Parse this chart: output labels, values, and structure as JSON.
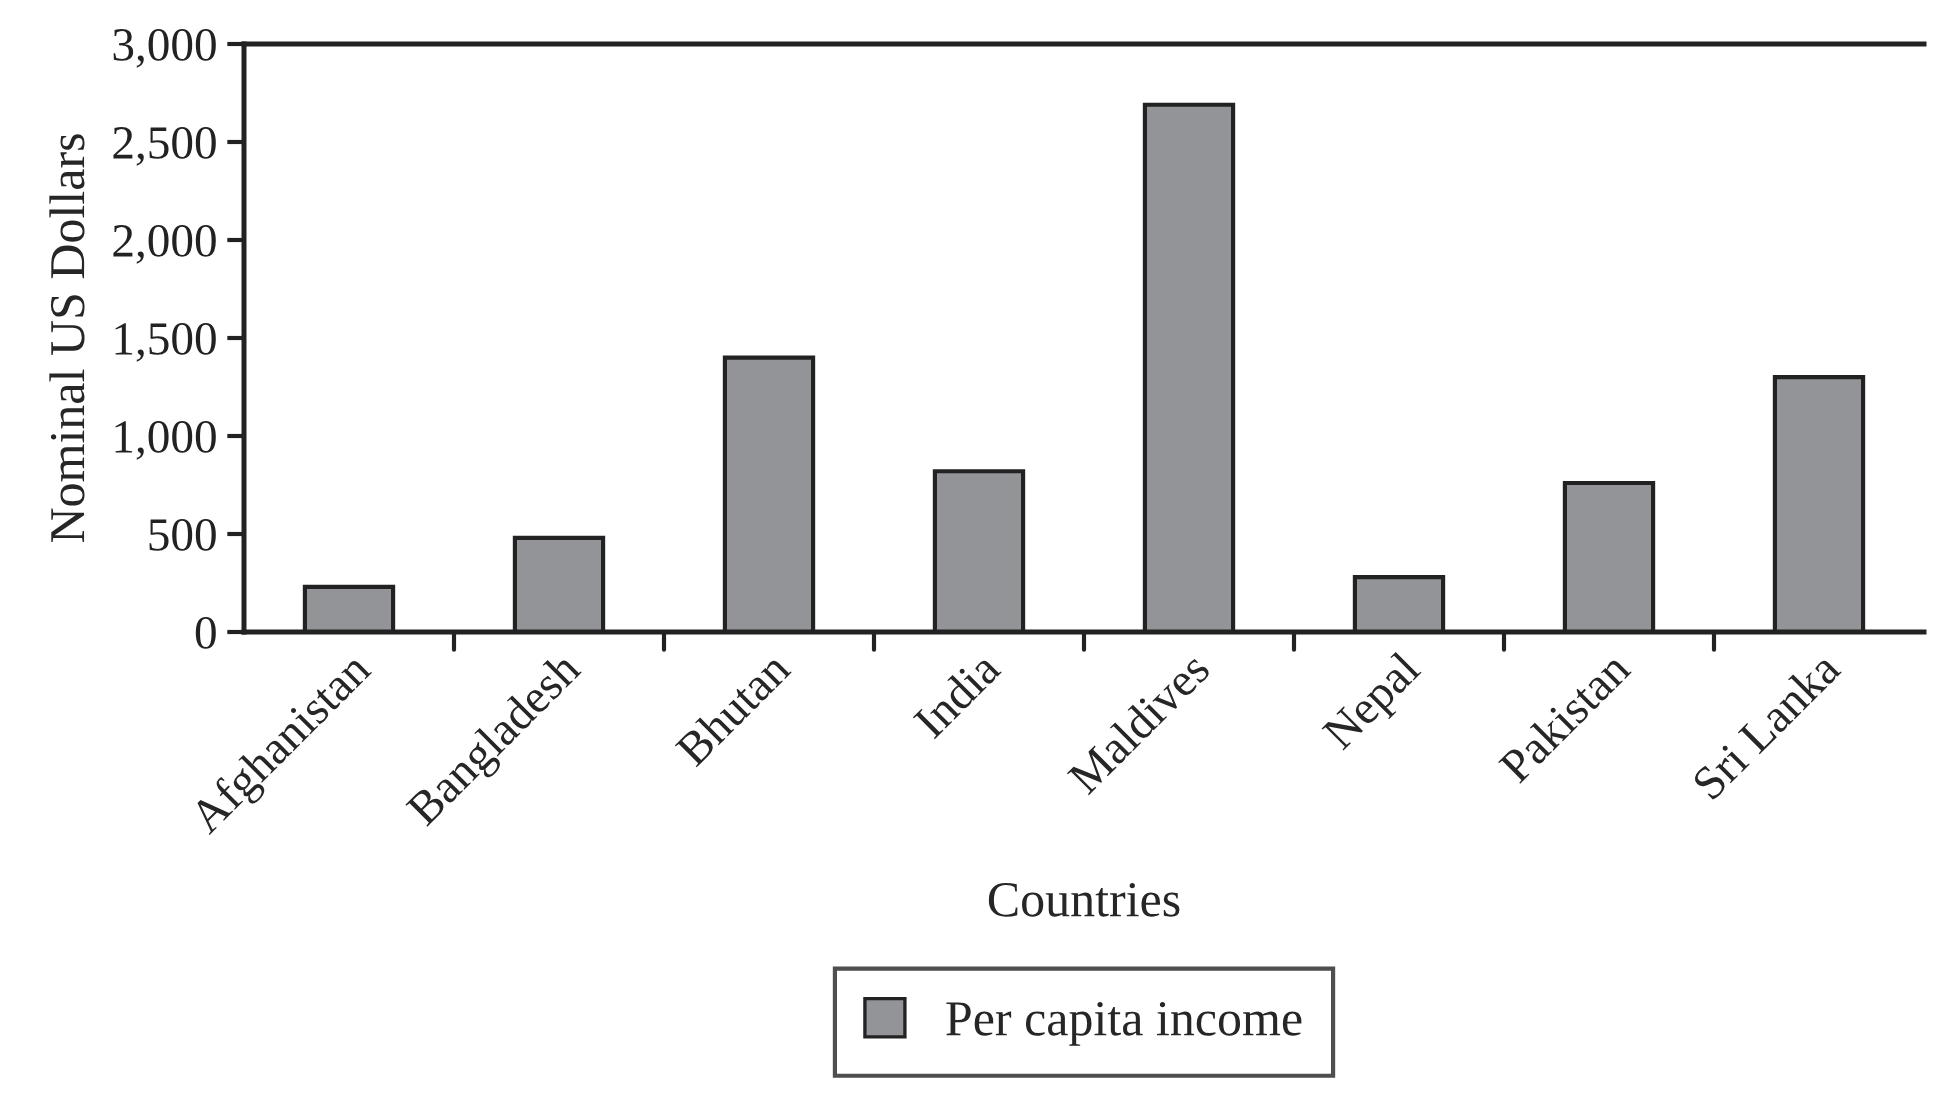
{
  "chart_data": {
    "type": "bar",
    "xlabel": "Countries",
    "ylabel": "Nominal US Dollars",
    "categories": [
      "Afghanistan",
      "Bangladesh",
      "Bhutan",
      "India",
      "Maldives",
      "Nepal",
      "Pakistan",
      "Sri Lanka"
    ],
    "series": [
      {
        "name": "Per capita income",
        "color": "#939498",
        "values": [
          230,
          480,
          1400,
          820,
          2690,
          280,
          760,
          1300
        ]
      }
    ],
    "ylim": [
      0,
      3000
    ],
    "yticks": [
      {
        "value": 0,
        "label": "0"
      },
      {
        "value": 500,
        "label": "500"
      },
      {
        "value": 1000,
        "label": "1,000"
      },
      {
        "value": 1500,
        "label": "1,500"
      },
      {
        "value": 2000,
        "label": "2,000"
      },
      {
        "value": 2500,
        "label": "2,500"
      },
      {
        "value": 3000,
        "label": "3,000"
      }
    ],
    "grid": false,
    "legend": "bottom"
  }
}
